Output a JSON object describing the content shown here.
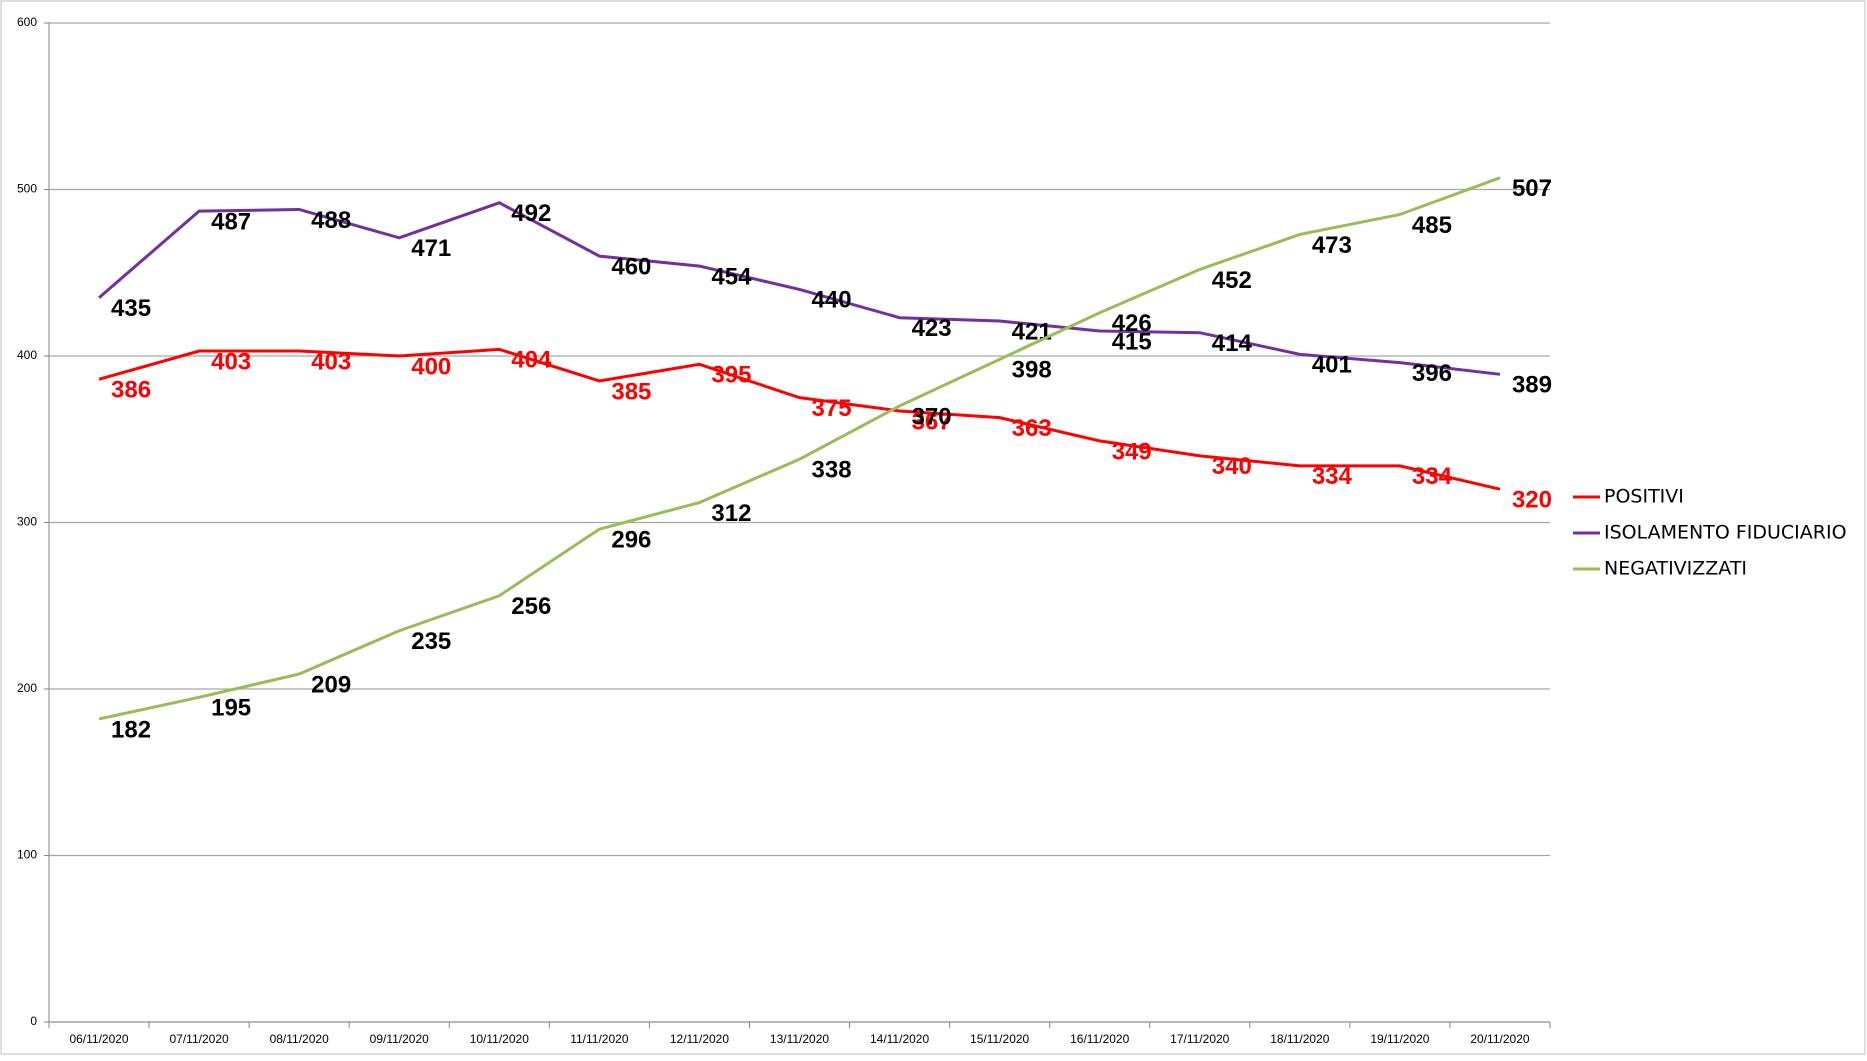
{
  "chart_data": {
    "type": "line",
    "categories": [
      "06/11/2020",
      "07/11/2020",
      "08/11/2020",
      "09/11/2020",
      "10/11/2020",
      "11/11/2020",
      "12/11/2020",
      "13/11/2020",
      "14/11/2020",
      "15/11/2020",
      "16/11/2020",
      "17/11/2020",
      "18/11/2020",
      "19/11/2020",
      "20/11/2020"
    ],
    "series": [
      {
        "name": "POSITIVI",
        "color": "#ff0000",
        "label_color": "#ff0000",
        "values": [
          386,
          403,
          403,
          400,
          404,
          385,
          395,
          375,
          367,
          363,
          349,
          340,
          334,
          334,
          320
        ]
      },
      {
        "name": "ISOLAMENTO FIDUCIARIO",
        "color": "#7030a0",
        "label_color": "#000000",
        "values": [
          435,
          487,
          488,
          471,
          492,
          460,
          454,
          440,
          423,
          421,
          415,
          414,
          401,
          396,
          389
        ]
      },
      {
        "name": "NEGATIVIZZATI",
        "color": "#9bbb59",
        "label_color": "#000000",
        "values": [
          182,
          195,
          209,
          235,
          256,
          296,
          312,
          338,
          370,
          398,
          426,
          452,
          473,
          485,
          507
        ]
      }
    ],
    "ylim": [
      0,
      600
    ],
    "yticks": [
      0,
      100,
      200,
      300,
      400,
      500,
      600
    ],
    "grid": true,
    "legend": "right"
  }
}
